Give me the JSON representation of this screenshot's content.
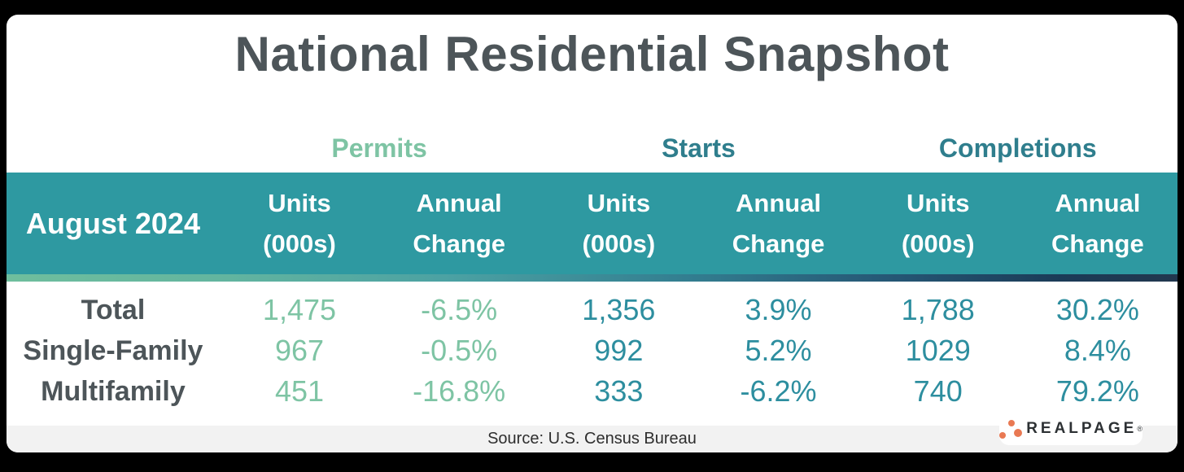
{
  "title": "National Residential Snapshot",
  "groups": [
    {
      "label": "Permits"
    },
    {
      "label": "Starts"
    },
    {
      "label": "Completions"
    }
  ],
  "header": {
    "period": "August 2024",
    "subcols": [
      {
        "line1": "Units",
        "line2": "(000s)"
      },
      {
        "line1": "Annual",
        "line2": "Change"
      },
      {
        "line1": "Units",
        "line2": "(000s)"
      },
      {
        "line1": "Annual",
        "line2": "Change"
      },
      {
        "line1": "Units",
        "line2": "(000s)"
      },
      {
        "line1": "Annual",
        "line2": "Change"
      }
    ]
  },
  "rows": [
    {
      "label": "Total",
      "values": [
        "1,475",
        "-6.5%",
        "1,356",
        "3.9%",
        "1,788",
        "30.2%"
      ]
    },
    {
      "label": "Single-Family",
      "values": [
        "967",
        "-0.5%",
        "992",
        "5.2%",
        "1029",
        "8.4%"
      ]
    },
    {
      "label": "Multifamily",
      "values": [
        "451",
        "-16.8%",
        "333",
        "-6.2%",
        "740",
        "79.2%"
      ]
    }
  ],
  "footer": {
    "source_text": "Source: U.S. Census Bureau"
  },
  "logo": {
    "text": "REALPAGE",
    "mark": "®"
  },
  "colors": {
    "header_band_teal": "#2E99A1",
    "permits_accent": "#7EC4A4",
    "starts_completions_accent": "#2F7E8D",
    "value_teal": "#2D8E9F",
    "title_gray": "#4D5559",
    "gradient_left_green": "#6FBE9D",
    "gradient_right_navy": "#22374E",
    "footer_bar_gray": "#F2F2F2",
    "logo_orange": "#E97953"
  },
  "chart_data": {
    "type": "table",
    "title": "National Residential Snapshot",
    "row_header": "August 2024",
    "column_groups": [
      "Permits",
      "Starts",
      "Completions"
    ],
    "sub_columns": [
      "Units (000s)",
      "Annual Change"
    ],
    "rows": [
      {
        "label": "Total",
        "permits": {
          "units": "1,475",
          "annual_change": "-6.5%"
        },
        "starts": {
          "units": "1,356",
          "annual_change": "3.9%"
        },
        "completions": {
          "units": "1,788",
          "annual_change": "30.2%"
        }
      },
      {
        "label": "Single-Family",
        "permits": {
          "units": "967",
          "annual_change": "-0.5%"
        },
        "starts": {
          "units": "992",
          "annual_change": "5.2%"
        },
        "completions": {
          "units": "1029",
          "annual_change": "8.4%"
        }
      },
      {
        "label": "Multifamily",
        "permits": {
          "units": "451",
          "annual_change": "-16.8%"
        },
        "starts": {
          "units": "333",
          "annual_change": "-6.2%"
        },
        "completions": {
          "units": "740",
          "annual_change": "79.2%"
        }
      }
    ],
    "source": "U.S. Census Bureau"
  }
}
